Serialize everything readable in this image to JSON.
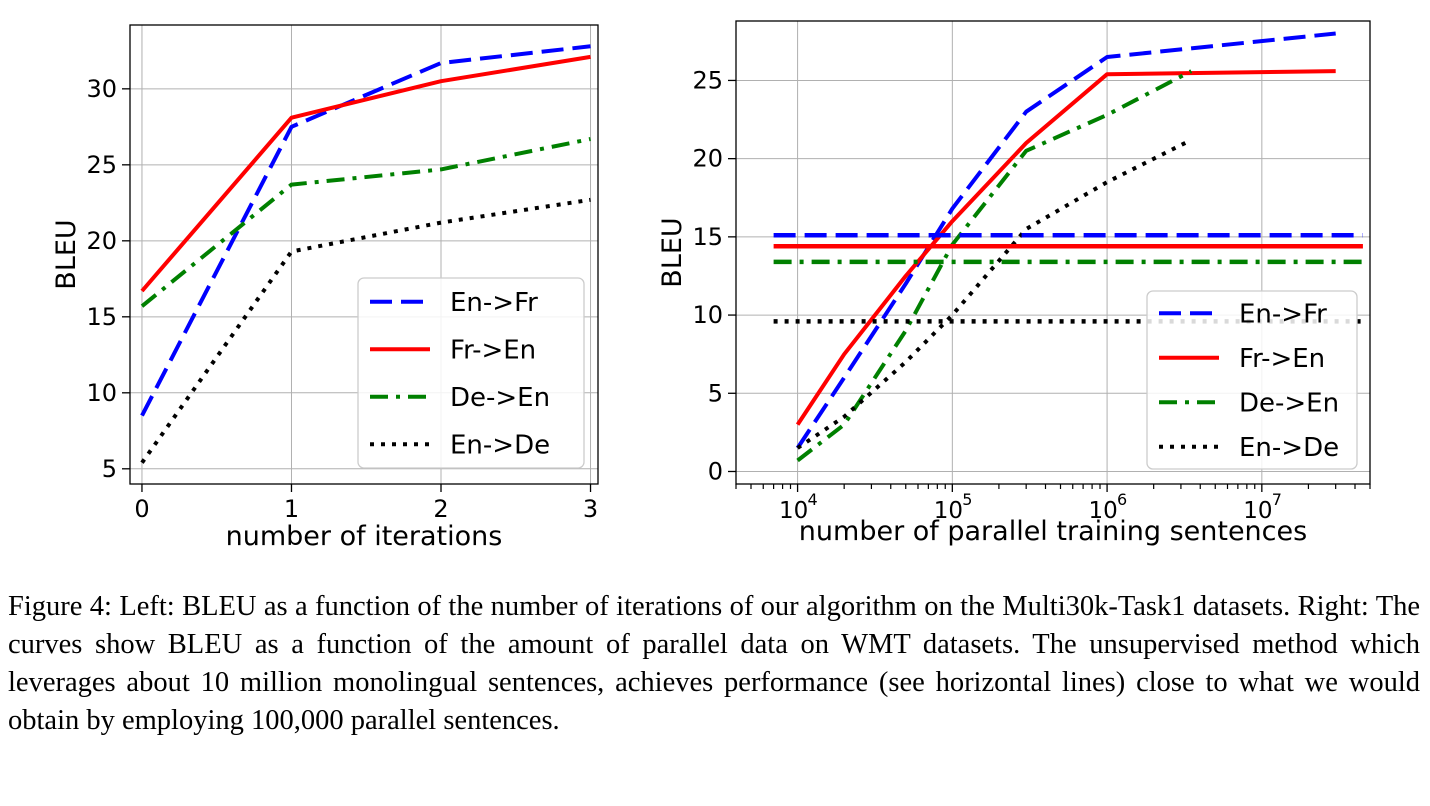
{
  "caption": {
    "label": "Figure 4:",
    "text": "Left: BLEU as a function of the number of iterations of our algorithm on the Multi30k-Task1 datasets. Right: The curves show BLEU as a function of the amount of parallel data on WMT datasets. The unsupervised method which leverages about 10 million monolingual sentences, achieves performance (see horizontal lines) close to what we would obtain by employing 100,000 parallel sentences."
  },
  "chart_data": [
    {
      "type": "line",
      "title": "",
      "xlabel": "number of iterations",
      "ylabel": "BLEU",
      "xlim": [
        -0.08,
        3.05
      ],
      "ylim": [
        4,
        34.2
      ],
      "xticks": [
        0,
        1,
        2,
        3
      ],
      "yticks": [
        5,
        10,
        15,
        20,
        25,
        30
      ],
      "grid": true,
      "legend_position": "lower-right",
      "series": [
        {
          "name": "En->Fr",
          "color": "#0000ff",
          "style": "dashed",
          "x": [
            0,
            1,
            2,
            3
          ],
          "y": [
            8.5,
            27.5,
            31.7,
            32.8
          ]
        },
        {
          "name": "Fr->En",
          "color": "#ff0000",
          "style": "solid",
          "x": [
            0,
            1,
            2,
            3
          ],
          "y": [
            16.7,
            28.1,
            30.5,
            32.1
          ]
        },
        {
          "name": "De->En",
          "color": "#008000",
          "style": "dashdot",
          "x": [
            0,
            1,
            2,
            3
          ],
          "y": [
            15.7,
            23.7,
            24.7,
            26.7
          ]
        },
        {
          "name": "En->De",
          "color": "#000000",
          "style": "dotted",
          "x": [
            0,
            1,
            2,
            3
          ],
          "y": [
            5.4,
            19.3,
            21.2,
            22.7
          ]
        }
      ]
    },
    {
      "type": "line",
      "title": "",
      "xlabel": "number of parallel training sentences",
      "ylabel": "BLEU",
      "xscale": "log",
      "xlim": [
        4000,
        50000000
      ],
      "ylim": [
        -0.8,
        28.8
      ],
      "xticks": [
        10000,
        100000,
        1000000,
        10000000
      ],
      "xtick_labels": [
        [
          "10",
          "4"
        ],
        [
          "10",
          "5"
        ],
        [
          "10",
          "6"
        ],
        [
          "10",
          "7"
        ]
      ],
      "yticks": [
        0,
        5,
        10,
        15,
        20,
        25
      ],
      "grid": true,
      "legend_position": "lower-right",
      "series": [
        {
          "name": "En->Fr",
          "color": "#0000ff",
          "style": "dashed",
          "x": [
            10000,
            20000,
            50000,
            100000,
            300000,
            1000000,
            30000000
          ],
          "y": [
            1.5,
            6,
            12,
            16.8,
            23,
            26.5,
            28
          ]
        },
        {
          "name": "Fr->En",
          "color": "#ff0000",
          "style": "solid",
          "x": [
            10000,
            20000,
            50000,
            100000,
            300000,
            1000000,
            30000000
          ],
          "y": [
            3,
            7.5,
            12.5,
            16,
            21,
            25.4,
            25.6
          ]
        },
        {
          "name": "De->En",
          "color": "#008000",
          "style": "dashdot",
          "x": [
            10000,
            20000,
            50000,
            100000,
            300000,
            1000000,
            3500000
          ],
          "y": [
            0.7,
            3,
            9,
            14.5,
            20.5,
            22.8,
            25.6
          ]
        },
        {
          "name": "En->De",
          "color": "#000000",
          "style": "dotted",
          "x": [
            10000,
            20000,
            50000,
            100000,
            300000,
            1000000,
            3500000
          ],
          "y": [
            1.5,
            3.5,
            7,
            10,
            15.5,
            18.5,
            21.2
          ]
        }
      ],
      "baselines": [
        {
          "name": "En->Fr",
          "color": "#0000ff",
          "style": "dashed",
          "y": 15.1
        },
        {
          "name": "Fr->En",
          "color": "#ff0000",
          "style": "solid",
          "y": 14.4
        },
        {
          "name": "De->En",
          "color": "#008000",
          "style": "dashdot",
          "y": 13.4
        },
        {
          "name": "En->De",
          "color": "#000000",
          "style": "dotted",
          "y": 9.6
        }
      ],
      "baseline_x": [
        7000,
        45000000
      ]
    }
  ]
}
